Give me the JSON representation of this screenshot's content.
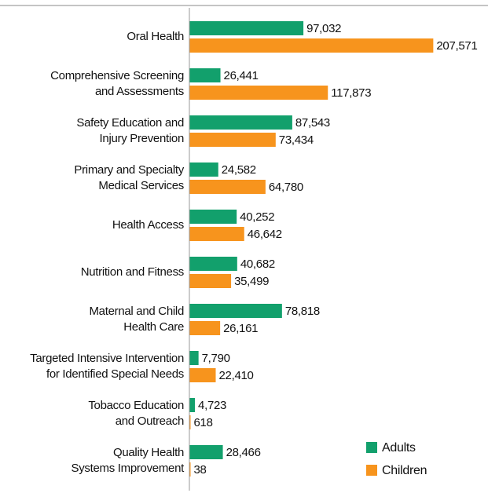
{
  "chart_data": {
    "type": "barh",
    "categories": [
      [
        "Oral Health"
      ],
      [
        "Comprehensive Screening",
        "and Assessments"
      ],
      [
        "Safety Education and",
        "Injury Prevention"
      ],
      [
        "Primary and Specialty",
        "Medical Services"
      ],
      [
        "Health Access"
      ],
      [
        "Nutrition and Fitness"
      ],
      [
        "Maternal and Child",
        "Health Care"
      ],
      [
        "Targeted Intensive Intervention",
        "for Identified Special Needs"
      ],
      [
        "Tobacco Education",
        "and Outreach"
      ],
      [
        "Quality Health",
        "Systems Improvement"
      ]
    ],
    "series": [
      {
        "name": "Adults",
        "color": "#12a06c",
        "values": [
          97032,
          26441,
          87543,
          24582,
          40252,
          40682,
          78818,
          7790,
          4723,
          28466
        ],
        "value_labels": [
          "97,032",
          "26,441",
          "87,543",
          "24,582",
          "40,252",
          "40,682",
          "78,818",
          "7,790",
          "4,723",
          "28,466"
        ]
      },
      {
        "name": "Children",
        "color": "#f7941d",
        "values": [
          207571,
          117873,
          73434,
          64780,
          46642,
          35499,
          26161,
          22410,
          618,
          38
        ],
        "value_labels": [
          "207,571",
          "117,873",
          "73,434",
          "64,780",
          "46,642",
          "35,499",
          "26,161",
          "22,410",
          "618",
          "38"
        ]
      }
    ],
    "xlim": [
      0,
      210000
    ],
    "legend": "lower right"
  }
}
